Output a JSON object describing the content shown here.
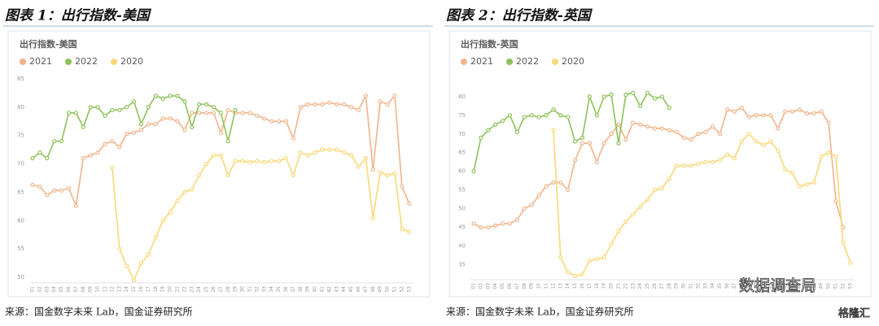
{
  "chart_data": [
    {
      "type": "line",
      "figure_label": "图表 1：出行指数-美国",
      "title": "出行指数-美国",
      "source": "来源：国金数字未来 Lab，国金证券研究所",
      "categories": [
        "01",
        "02",
        "03",
        "04",
        "05",
        "06",
        "07",
        "08",
        "09",
        "10",
        "11",
        "12",
        "13",
        "14",
        "15",
        "16",
        "17",
        "18",
        "19",
        "20",
        "21",
        "22",
        "23",
        "24",
        "25",
        "26",
        "27",
        "28",
        "29",
        "30",
        "31",
        "32",
        "33",
        "34",
        "35",
        "36",
        "37",
        "38",
        "39",
        "40",
        "41",
        "42",
        "43",
        "44",
        "45",
        "46",
        "47",
        "48",
        "49",
        "50",
        "51",
        "52",
        "53"
      ],
      "series": [
        {
          "name": "2021",
          "color": "#f2b48a",
          "values": [
            66.3,
            66,
            64.5,
            65.3,
            65.3,
            65.7,
            62.6,
            71,
            71.5,
            72,
            73.5,
            74,
            73,
            75.3,
            75.5,
            76,
            77,
            77,
            78,
            78,
            77.5,
            76,
            79,
            79,
            79,
            79,
            75.5,
            79.5,
            79,
            79,
            79,
            78.5,
            78,
            77.5,
            77.5,
            77.5,
            74.5,
            80,
            80.5,
            80.5,
            80.5,
            80.8,
            80.5,
            80.5,
            80,
            79.5,
            82,
            69,
            81,
            80.5,
            82,
            66,
            63
          ]
        },
        {
          "name": "2022",
          "color": "#8dc25a",
          "values": [
            71,
            72,
            71,
            74,
            74,
            79,
            79,
            76.5,
            80,
            80,
            78.5,
            79.5,
            79.5,
            80,
            81,
            77,
            80,
            82,
            81.5,
            82,
            82,
            81,
            76.5,
            80.5,
            80.5,
            80,
            79,
            74,
            79.5,
            null,
            null,
            null,
            null,
            null,
            null,
            null,
            null,
            null,
            null,
            null,
            null,
            null,
            null,
            null,
            null,
            null,
            null,
            null,
            null,
            null,
            null,
            null,
            null
          ]
        },
        {
          "name": "2020",
          "color": "#f9d877",
          "values": [
            null,
            null,
            null,
            null,
            null,
            null,
            null,
            null,
            null,
            null,
            null,
            69.3,
            55,
            52,
            49.5,
            52.5,
            54,
            57,
            60,
            61.5,
            63.5,
            65,
            65.5,
            68,
            70,
            71.5,
            71.5,
            68,
            70.5,
            70.5,
            70.3,
            70.5,
            70.3,
            70.5,
            70.5,
            71,
            68,
            72,
            71.5,
            72,
            72.5,
            72.5,
            72.5,
            72,
            71.5,
            69.5,
            71,
            60.5,
            68.5,
            68,
            68.3,
            58.5,
            58
          ]
        }
      ],
      "ylim": [
        49,
        86
      ],
      "yticks": [
        50,
        55,
        60,
        65,
        70,
        75,
        80,
        85
      ],
      "grid": false,
      "legend": "top-left"
    },
    {
      "type": "line",
      "figure_label": "图表 2：出行指数-英国",
      "title": "出行指数-英国",
      "source": "来源：国金数字未来 Lab，国金证券研究所",
      "categories": [
        "01",
        "02",
        "03",
        "04",
        "05",
        "06",
        "07",
        "08",
        "09",
        "10",
        "11",
        "12",
        "13",
        "14",
        "15",
        "16",
        "17",
        "18",
        "19",
        "20",
        "21",
        "22",
        "23",
        "24",
        "25",
        "26",
        "27",
        "28",
        "29",
        "30",
        "31",
        "32",
        "33",
        "34",
        "35",
        "36",
        "37",
        "38",
        "39",
        "40",
        "41",
        "42",
        "43",
        "44",
        "45",
        "46",
        "47",
        "48",
        "49",
        "50",
        "51",
        "52",
        "53"
      ],
      "series": [
        {
          "name": "2021",
          "color": "#f2b48a",
          "values": [
            46,
            45,
            45,
            45.5,
            46,
            46,
            47,
            50,
            51,
            53.5,
            56,
            57,
            57,
            55,
            63,
            67.5,
            67.5,
            62.5,
            67.5,
            70,
            72.5,
            68.5,
            73,
            72.5,
            72,
            71.5,
            71.5,
            71,
            70.5,
            69,
            68.5,
            70,
            70.5,
            72,
            70,
            76.5,
            76,
            77,
            74.5,
            75,
            75,
            75,
            71.5,
            76,
            76,
            76.5,
            75.5,
            75.5,
            76,
            73,
            52,
            45,
            null
          ]
        },
        {
          "name": "2022",
          "color": "#8dc25a",
          "values": [
            60,
            69,
            71,
            72.5,
            73.5,
            75,
            70.5,
            74.5,
            75,
            74.5,
            75,
            76.5,
            75,
            74.5,
            68,
            69,
            80,
            75,
            80,
            80.5,
            67.5,
            80.5,
            81,
            77.5,
            81,
            79.5,
            80,
            77,
            null,
            null,
            null,
            null,
            null,
            null,
            null,
            null,
            null,
            null,
            null,
            null,
            null,
            null,
            null,
            null,
            null,
            null,
            null,
            null,
            null,
            null,
            null,
            null,
            null
          ]
        },
        {
          "name": "2020",
          "color": "#f9d877",
          "values": [
            null,
            null,
            null,
            null,
            null,
            null,
            null,
            null,
            null,
            null,
            null,
            71,
            37,
            33,
            32,
            32.5,
            36,
            36.5,
            37,
            40.5,
            44,
            46.5,
            48.5,
            50.5,
            52.5,
            55,
            55.5,
            58,
            61.5,
            61.5,
            61.5,
            62,
            62.5,
            62.5,
            63,
            64.5,
            63.5,
            68,
            70,
            68,
            67,
            68,
            65.5,
            60.5,
            59.5,
            56,
            56.5,
            57,
            64,
            65,
            64,
            41,
            35.5
          ]
        }
      ],
      "ylim": [
        31,
        83
      ],
      "yticks": [
        35,
        40,
        45,
        50,
        55,
        60,
        65,
        70,
        75,
        80
      ],
      "grid": false,
      "legend": "top-left"
    }
  ],
  "overlay": [
    "数据调查局",
    "格隆汇"
  ]
}
